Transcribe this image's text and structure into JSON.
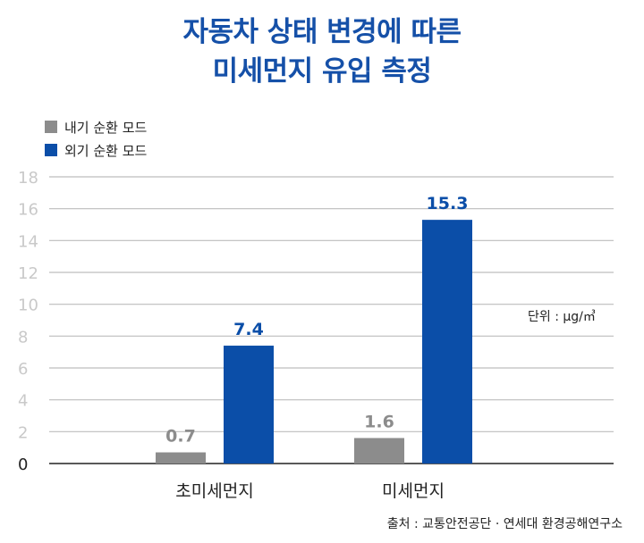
{
  "title_lines": [
    "자동차 상태 변경에 따른",
    "미세먼지 유입 측정"
  ],
  "unit_label": "단위 : μg/㎥",
  "source": "출처 : 교통안전공단 · 연세대 환경공해연구소",
  "colors": {
    "title": "#1550a8",
    "series1": "#8c8c8c",
    "series2": "#0b4ea8",
    "grid": "#bdbdbd",
    "tick": "#c9c9c9"
  },
  "chart_data": {
    "type": "bar",
    "categories": [
      "초미세먼지",
      "미세먼지"
    ],
    "series": [
      {
        "name": "내기 순환 모드",
        "values": [
          0.7,
          1.6
        ]
      },
      {
        "name": "외기 순환 모드",
        "values": [
          7.4,
          15.3
        ]
      }
    ],
    "ylim": [
      0,
      18
    ],
    "yticks": [
      0,
      2,
      4,
      6,
      8,
      10,
      12,
      14,
      16,
      18
    ],
    "grid": true,
    "legend": "top-left"
  }
}
